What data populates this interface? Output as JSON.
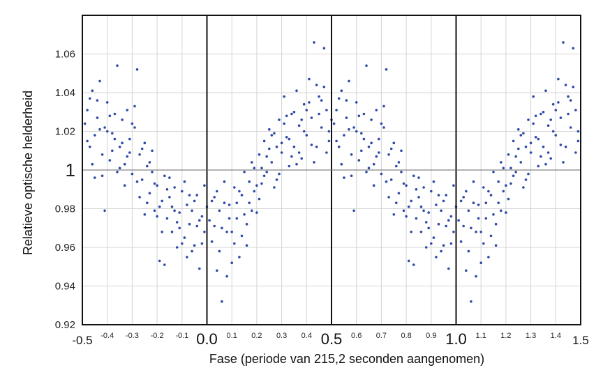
{
  "chart_data": {
    "type": "scatter",
    "title": "",
    "xlabel": "Fase (periode van 215,2 seconden aangenomen)",
    "ylabel": "Relatieve optische helderheid",
    "xlim": [
      -0.5,
      1.5
    ],
    "ylim": [
      0.92,
      1.08
    ],
    "grid": true,
    "reference_line_y": 1,
    "point_color": "#2f4aa6",
    "x_ticks_major": [
      {
        "value": -0.5,
        "label": "-0.5"
      },
      {
        "value": 0.0,
        "label": "0.0"
      },
      {
        "value": 0.5,
        "label": "0.5"
      },
      {
        "value": 1.0,
        "label": "1.0"
      },
      {
        "value": 1.5,
        "label": "1.5"
      }
    ],
    "x_ticks_minor": [
      {
        "value": -0.4,
        "label": "-0.4"
      },
      {
        "value": -0.3,
        "label": "-0.3"
      },
      {
        "value": -0.2,
        "label": "-0.2"
      },
      {
        "value": -0.1,
        "label": "-0.1"
      },
      {
        "value": 0.1,
        "label": "0.1"
      },
      {
        "value": 0.2,
        "label": "0.2"
      },
      {
        "value": 0.3,
        "label": "0.3"
      },
      {
        "value": 0.4,
        "label": "0.4"
      },
      {
        "value": 0.6,
        "label": "0.6"
      },
      {
        "value": 0.7,
        "label": "0.7"
      },
      {
        "value": 0.8,
        "label": "0.8"
      },
      {
        "value": 0.9,
        "label": "0.9"
      },
      {
        "value": 1.1,
        "label": "1.1"
      },
      {
        "value": 1.2,
        "label": "1.2"
      },
      {
        "value": 1.3,
        "label": "1.3"
      },
      {
        "value": 1.4,
        "label": "1.4"
      }
    ],
    "y_ticks": [
      {
        "value": 0.92,
        "label": "0.92"
      },
      {
        "value": 0.94,
        "label": "0.94"
      },
      {
        "value": 0.96,
        "label": "0.96"
      },
      {
        "value": 0.98,
        "label": "0.98"
      },
      {
        "value": 1.0,
        "label": "1"
      },
      {
        "value": 1.02,
        "label": "1.02"
      },
      {
        "value": 1.04,
        "label": "1.04"
      },
      {
        "value": 1.06,
        "label": "1.06"
      }
    ],
    "points": [
      [
        -0.49,
        1.024
      ],
      [
        -0.48,
        1.031
      ],
      [
        -0.47,
        1.012
      ],
      [
        -0.46,
        1.041
      ],
      [
        -0.45,
        1.018
      ],
      [
        -0.44,
        1.027
      ],
      [
        -0.43,
        1.046
      ],
      [
        -0.42,
        1.008
      ],
      [
        -0.41,
        1.022
      ],
      [
        -0.4,
        1.035
      ],
      [
        -0.39,
        1.005
      ],
      [
        -0.38,
        1.019
      ],
      [
        -0.37,
        1.029
      ],
      [
        -0.36,
        1.054
      ],
      [
        -0.35,
        1.012
      ],
      [
        -0.34,
        1.026
      ],
      [
        -0.33,
        1.003
      ],
      [
        -0.32,
        1.031
      ],
      [
        -0.31,
        1.016
      ],
      [
        -0.3,
        0.998
      ],
      [
        -0.29,
        1.022
      ],
      [
        -0.28,
        1.052
      ],
      [
        -0.27,
        1.008
      ],
      [
        -0.26,
        0.995
      ],
      [
        -0.25,
        1.014
      ],
      [
        -0.24,
        1.002
      ],
      [
        -0.23,
        0.988
      ],
      [
        -0.22,
        1.01
      ],
      [
        -0.21,
        0.979
      ],
      [
        -0.2,
        0.992
      ],
      [
        -0.19,
        0.953
      ],
      [
        -0.18,
        0.984
      ],
      [
        -0.17,
        0.997
      ],
      [
        -0.16,
        0.975
      ],
      [
        -0.15,
        0.986
      ],
      [
        -0.14,
        0.968
      ],
      [
        -0.13,
        0.991
      ],
      [
        -0.12,
        0.96
      ],
      [
        -0.11,
        0.978
      ],
      [
        -0.1,
        0.989
      ],
      [
        -0.09,
        0.965
      ],
      [
        -0.08,
        0.982
      ],
      [
        -0.07,
        0.972
      ],
      [
        -0.06,
        0.958
      ],
      [
        -0.05,
        0.984
      ],
      [
        -0.04,
        0.971
      ],
      [
        -0.03,
        0.949
      ],
      [
        -0.02,
        0.976
      ],
      [
        -0.01,
        0.968
      ],
      [
        0.0,
        0.981
      ],
      [
        -0.48,
        1.015
      ],
      [
        -0.46,
        1.003
      ],
      [
        -0.44,
        1.036
      ],
      [
        -0.42,
        0.997
      ],
      [
        -0.4,
        1.02
      ],
      [
        -0.38,
        1.01
      ],
      [
        -0.36,
        0.999
      ],
      [
        -0.34,
        1.014
      ],
      [
        -0.32,
        1.007
      ],
      [
        -0.3,
        1.024
      ],
      [
        -0.28,
        0.994
      ],
      [
        -0.26,
        1.011
      ],
      [
        -0.24,
        0.983
      ],
      [
        -0.22,
        0.999
      ],
      [
        -0.2,
        0.976
      ],
      [
        -0.18,
        0.968
      ],
      [
        -0.16,
        0.99
      ],
      [
        -0.14,
        0.981
      ],
      [
        -0.12,
        0.973
      ],
      [
        -0.1,
        0.962
      ],
      [
        -0.08,
        0.955
      ],
      [
        -0.06,
        0.979
      ],
      [
        -0.04,
        0.987
      ],
      [
        -0.02,
        0.962
      ],
      [
        -0.47,
        1.037
      ],
      [
        -0.43,
        1.021
      ],
      [
        -0.39,
        1.028
      ],
      [
        -0.35,
        1.001
      ],
      [
        -0.31,
        1.009
      ],
      [
        -0.27,
        0.986
      ],
      [
        -0.23,
        1.004
      ],
      [
        -0.19,
        0.981
      ],
      [
        -0.15,
        0.996
      ],
      [
        -0.11,
        0.97
      ],
      [
        -0.07,
        0.987
      ],
      [
        -0.03,
        0.974
      ],
      [
        -0.45,
        0.996
      ],
      [
        -0.41,
        0.979
      ],
      [
        -0.37,
        1.016
      ],
      [
        -0.33,
        0.992
      ],
      [
        -0.29,
        1.033
      ],
      [
        -0.25,
        0.977
      ],
      [
        -0.21,
        0.993
      ],
      [
        -0.17,
        0.951
      ],
      [
        -0.13,
        0.979
      ],
      [
        -0.09,
        0.994
      ],
      [
        -0.05,
        0.961
      ],
      [
        -0.01,
        0.992
      ],
      [
        0.01,
        0.974
      ],
      [
        0.02,
        0.963
      ],
      [
        0.03,
        0.986
      ],
      [
        0.04,
        0.948
      ],
      [
        0.05,
        0.979
      ],
      [
        0.06,
        0.97
      ],
      [
        0.07,
        0.994
      ],
      [
        0.08,
        0.945
      ],
      [
        0.09,
        0.982
      ],
      [
        0.1,
        0.968
      ],
      [
        0.11,
        0.991
      ],
      [
        0.12,
        0.975
      ],
      [
        0.13,
        0.955
      ],
      [
        0.14,
        0.987
      ],
      [
        0.15,
        0.999
      ],
      [
        0.16,
        0.972
      ],
      [
        0.17,
        0.983
      ],
      [
        0.18,
        1.004
      ],
      [
        0.19,
        0.989
      ],
      [
        0.2,
        0.978
      ],
      [
        0.21,
        1.008
      ],
      [
        0.22,
        0.993
      ],
      [
        0.23,
        1.015
      ],
      [
        0.24,
        0.999
      ],
      [
        0.25,
        1.021
      ],
      [
        0.26,
        1.004
      ],
      [
        0.27,
        0.991
      ],
      [
        0.28,
        1.012
      ],
      [
        0.29,
        1.026
      ],
      [
        0.3,
        1.009
      ],
      [
        0.31,
        1.038
      ],
      [
        0.32,
        1.017
      ],
      [
        0.33,
        1.002
      ],
      [
        0.34,
        1.029
      ],
      [
        0.35,
        1.012
      ],
      [
        0.36,
        1.041
      ],
      [
        0.37,
        1.023
      ],
      [
        0.38,
        1.006
      ],
      [
        0.39,
        1.034
      ],
      [
        0.4,
        1.018
      ],
      [
        0.41,
        1.047
      ],
      [
        0.42,
        1.027
      ],
      [
        0.43,
        1.066
      ],
      [
        0.44,
        1.012
      ],
      [
        0.45,
        1.038
      ],
      [
        0.46,
        1.022
      ],
      [
        0.47,
        1.063
      ],
      [
        0.48,
        1.031
      ],
      [
        0.49,
        1.015
      ],
      [
        0.5,
        1.026
      ],
      [
        0.03,
        0.971
      ],
      [
        0.05,
        0.958
      ],
      [
        0.07,
        0.983
      ],
      [
        0.09,
        0.975
      ],
      [
        0.11,
        0.962
      ],
      [
        0.13,
        0.989
      ],
      [
        0.15,
        0.977
      ],
      [
        0.17,
        0.994
      ],
      [
        0.19,
        1.001
      ],
      [
        0.21,
        0.985
      ],
      [
        0.23,
        0.997
      ],
      [
        0.25,
        1.011
      ],
      [
        0.27,
        1.019
      ],
      [
        0.29,
        0.998
      ],
      [
        0.31,
        1.024
      ],
      [
        0.33,
        1.016
      ],
      [
        0.35,
        1.03
      ],
      [
        0.37,
        1.009
      ],
      [
        0.39,
        1.02
      ],
      [
        0.41,
        1.035
      ],
      [
        0.43,
        1.004
      ],
      [
        0.45,
        1.029
      ],
      [
        0.47,
        1.043
      ],
      [
        0.49,
        1.02
      ],
      [
        0.04,
        0.989
      ],
      [
        0.08,
        0.968
      ],
      [
        0.12,
        0.983
      ],
      [
        0.16,
        0.961
      ],
      [
        0.2,
        0.992
      ],
      [
        0.24,
        1.007
      ],
      [
        0.28,
        0.995
      ],
      [
        0.32,
        1.028
      ],
      [
        0.36,
        1.003
      ],
      [
        0.4,
        1.031
      ],
      [
        0.44,
        1.044
      ],
      [
        0.48,
        1.009
      ],
      [
        0.06,
        0.932
      ],
      [
        0.14,
        0.966
      ],
      [
        0.22,
        1.001
      ],
      [
        0.3,
        1.014
      ],
      [
        0.38,
        1.026
      ],
      [
        0.46,
        1.036
      ],
      [
        0.02,
        0.984
      ],
      [
        0.1,
        0.952
      ],
      [
        0.18,
        0.979
      ],
      [
        0.26,
        1.018
      ],
      [
        0.34,
        1.007
      ],
      [
        0.42,
        1.013
      ],
      [
        0.51,
        1.024
      ],
      [
        0.52,
        1.031
      ],
      [
        0.53,
        1.012
      ],
      [
        0.54,
        1.041
      ],
      [
        0.55,
        1.018
      ],
      [
        0.56,
        1.027
      ],
      [
        0.57,
        1.046
      ],
      [
        0.58,
        1.008
      ],
      [
        0.59,
        1.022
      ],
      [
        0.6,
        1.035
      ],
      [
        0.61,
        1.005
      ],
      [
        0.62,
        1.019
      ],
      [
        0.63,
        1.029
      ],
      [
        0.64,
        1.054
      ],
      [
        0.65,
        1.012
      ],
      [
        0.66,
        1.026
      ],
      [
        0.67,
        1.003
      ],
      [
        0.68,
        1.031
      ],
      [
        0.69,
        1.016
      ],
      [
        0.7,
        0.998
      ],
      [
        0.71,
        1.022
      ],
      [
        0.72,
        1.052
      ],
      [
        0.73,
        1.008
      ],
      [
        0.74,
        0.995
      ],
      [
        0.75,
        1.014
      ],
      [
        0.76,
        1.002
      ],
      [
        0.77,
        0.988
      ],
      [
        0.78,
        1.01
      ],
      [
        0.79,
        0.979
      ],
      [
        0.8,
        0.992
      ],
      [
        0.81,
        0.953
      ],
      [
        0.82,
        0.984
      ],
      [
        0.83,
        0.997
      ],
      [
        0.84,
        0.975
      ],
      [
        0.85,
        0.986
      ],
      [
        0.86,
        0.968
      ],
      [
        0.87,
        0.991
      ],
      [
        0.88,
        0.96
      ],
      [
        0.89,
        0.978
      ],
      [
        0.9,
        0.989
      ],
      [
        0.91,
        0.965
      ],
      [
        0.92,
        0.982
      ],
      [
        0.93,
        0.972
      ],
      [
        0.94,
        0.958
      ],
      [
        0.95,
        0.984
      ],
      [
        0.96,
        0.971
      ],
      [
        0.97,
        0.949
      ],
      [
        0.98,
        0.976
      ],
      [
        0.99,
        0.968
      ],
      [
        1.0,
        0.981
      ],
      [
        0.52,
        1.015
      ],
      [
        0.54,
        1.003
      ],
      [
        0.56,
        1.036
      ],
      [
        0.58,
        0.997
      ],
      [
        0.6,
        1.02
      ],
      [
        0.62,
        1.01
      ],
      [
        0.64,
        0.999
      ],
      [
        0.66,
        1.014
      ],
      [
        0.68,
        1.007
      ],
      [
        0.7,
        1.024
      ],
      [
        0.72,
        0.994
      ],
      [
        0.74,
        1.011
      ],
      [
        0.76,
        0.983
      ],
      [
        0.78,
        0.999
      ],
      [
        0.8,
        0.976
      ],
      [
        0.82,
        0.968
      ],
      [
        0.84,
        0.99
      ],
      [
        0.86,
        0.981
      ],
      [
        0.88,
        0.973
      ],
      [
        0.9,
        0.962
      ],
      [
        0.92,
        0.955
      ],
      [
        0.94,
        0.979
      ],
      [
        0.96,
        0.987
      ],
      [
        0.98,
        0.962
      ],
      [
        0.53,
        1.037
      ],
      [
        0.57,
        1.021
      ],
      [
        0.61,
        1.028
      ],
      [
        0.65,
        1.001
      ],
      [
        0.69,
        1.009
      ],
      [
        0.73,
        0.986
      ],
      [
        0.77,
        1.004
      ],
      [
        0.81,
        0.981
      ],
      [
        0.85,
        0.996
      ],
      [
        0.89,
        0.97
      ],
      [
        0.93,
        0.987
      ],
      [
        0.97,
        0.974
      ],
      [
        0.55,
        0.996
      ],
      [
        0.59,
        0.979
      ],
      [
        0.63,
        1.016
      ],
      [
        0.67,
        0.992
      ],
      [
        0.71,
        1.033
      ],
      [
        0.75,
        0.977
      ],
      [
        0.79,
        0.993
      ],
      [
        0.83,
        0.951
      ],
      [
        0.87,
        0.979
      ],
      [
        0.91,
        0.994
      ],
      [
        0.95,
        0.961
      ],
      [
        0.99,
        0.992
      ],
      [
        1.01,
        0.974
      ],
      [
        1.02,
        0.963
      ],
      [
        1.03,
        0.986
      ],
      [
        1.04,
        0.948
      ],
      [
        1.05,
        0.979
      ],
      [
        1.06,
        0.97
      ],
      [
        1.07,
        0.994
      ],
      [
        1.08,
        0.945
      ],
      [
        1.09,
        0.982
      ],
      [
        1.1,
        0.968
      ],
      [
        1.11,
        0.991
      ],
      [
        1.12,
        0.975
      ],
      [
        1.13,
        0.955
      ],
      [
        1.14,
        0.987
      ],
      [
        1.15,
        0.999
      ],
      [
        1.16,
        0.972
      ],
      [
        1.17,
        0.983
      ],
      [
        1.18,
        1.004
      ],
      [
        1.19,
        0.989
      ],
      [
        1.2,
        0.978
      ],
      [
        1.21,
        1.008
      ],
      [
        1.22,
        0.993
      ],
      [
        1.23,
        1.015
      ],
      [
        1.24,
        0.999
      ],
      [
        1.25,
        1.021
      ],
      [
        1.26,
        1.004
      ],
      [
        1.27,
        0.991
      ],
      [
        1.28,
        1.012
      ],
      [
        1.29,
        1.026
      ],
      [
        1.3,
        1.009
      ],
      [
        1.31,
        1.038
      ],
      [
        1.32,
        1.017
      ],
      [
        1.33,
        1.002
      ],
      [
        1.34,
        1.029
      ],
      [
        1.35,
        1.012
      ],
      [
        1.36,
        1.041
      ],
      [
        1.37,
        1.023
      ],
      [
        1.38,
        1.006
      ],
      [
        1.39,
        1.034
      ],
      [
        1.4,
        1.018
      ],
      [
        1.41,
        1.047
      ],
      [
        1.42,
        1.027
      ],
      [
        1.43,
        1.066
      ],
      [
        1.44,
        1.012
      ],
      [
        1.45,
        1.038
      ],
      [
        1.46,
        1.022
      ],
      [
        1.47,
        1.063
      ],
      [
        1.48,
        1.031
      ],
      [
        1.49,
        1.015
      ],
      [
        1.03,
        0.971
      ],
      [
        1.05,
        0.958
      ],
      [
        1.07,
        0.983
      ],
      [
        1.09,
        0.975
      ],
      [
        1.11,
        0.962
      ],
      [
        1.13,
        0.989
      ],
      [
        1.15,
        0.977
      ],
      [
        1.17,
        0.994
      ],
      [
        1.19,
        1.001
      ],
      [
        1.21,
        0.985
      ],
      [
        1.23,
        0.997
      ],
      [
        1.25,
        1.011
      ],
      [
        1.27,
        1.019
      ],
      [
        1.29,
        0.998
      ],
      [
        1.31,
        1.024
      ],
      [
        1.33,
        1.016
      ],
      [
        1.35,
        1.03
      ],
      [
        1.37,
        1.009
      ],
      [
        1.39,
        1.02
      ],
      [
        1.41,
        1.035
      ],
      [
        1.43,
        1.004
      ],
      [
        1.45,
        1.029
      ],
      [
        1.47,
        1.043
      ],
      [
        1.49,
        1.02
      ],
      [
        1.04,
        0.989
      ],
      [
        1.08,
        0.968
      ],
      [
        1.12,
        0.983
      ],
      [
        1.16,
        0.961
      ],
      [
        1.2,
        0.992
      ],
      [
        1.24,
        1.007
      ],
      [
        1.28,
        0.995
      ],
      [
        1.32,
        1.028
      ],
      [
        1.36,
        1.003
      ],
      [
        1.4,
        1.031
      ],
      [
        1.44,
        1.044
      ],
      [
        1.48,
        1.009
      ],
      [
        1.06,
        0.932
      ],
      [
        1.14,
        0.966
      ],
      [
        1.22,
        1.001
      ],
      [
        1.3,
        1.014
      ],
      [
        1.38,
        1.026
      ],
      [
        1.46,
        1.036
      ],
      [
        1.02,
        0.984
      ],
      [
        1.1,
        0.952
      ],
      [
        1.18,
        0.979
      ],
      [
        1.26,
        1.018
      ],
      [
        1.34,
        1.007
      ],
      [
        1.42,
        1.013
      ]
    ]
  }
}
